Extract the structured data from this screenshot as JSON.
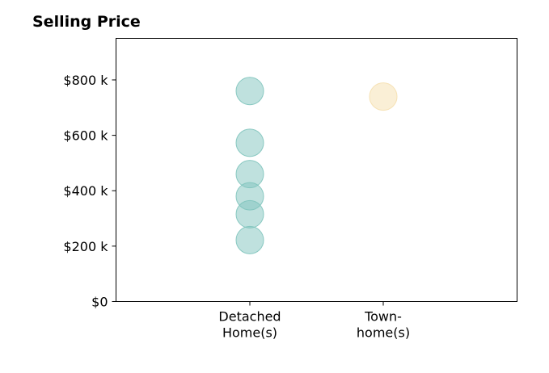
{
  "chart_data": {
    "type": "scatter",
    "title": "Selling Price",
    "xlabel": "",
    "ylabel": "",
    "categories": [
      [
        "Detached",
        "Home(s)"
      ],
      [
        "Town-",
        "home(s)"
      ]
    ],
    "ylim": [
      0,
      950000
    ],
    "yticks": [
      0,
      200000,
      400000,
      600000,
      800000
    ],
    "ytick_labels": [
      "$0",
      "$200 k",
      "$400 k",
      "$600 k",
      "$800 k"
    ],
    "series": [
      {
        "category_index": 0,
        "values": [
          760000,
          573000,
          460000,
          380000,
          315000,
          222000
        ],
        "color": "#7fc4bd"
      },
      {
        "category_index": 1,
        "values": [
          740000
        ],
        "color": "#f5dfae"
      }
    ],
    "grid": false,
    "legend": "none"
  }
}
